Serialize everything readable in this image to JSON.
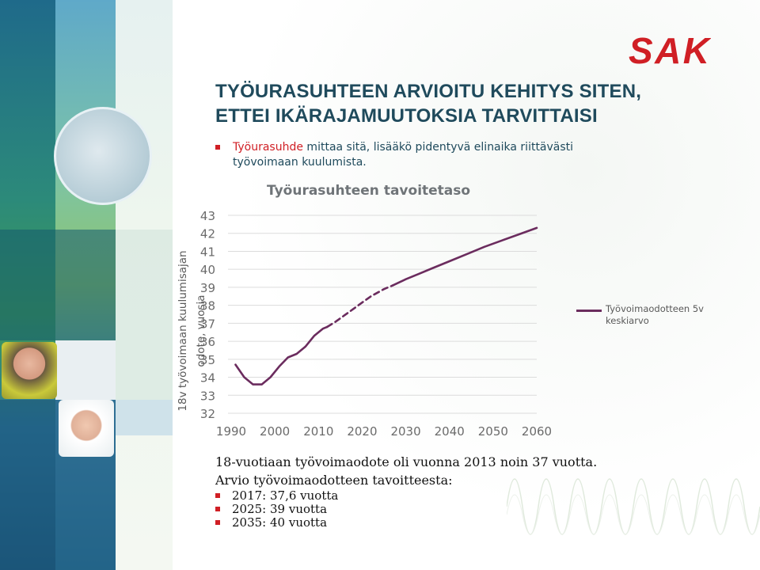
{
  "logo_text": "SAK",
  "title": {
    "line1": "TYÖURASUHTEEN ARVIOITU KEHITYS SITEN,",
    "line2": "ETTEI IKÄRAJAMUUTOKSIA TARVITTAISI"
  },
  "intro": {
    "highlight": "Työurasuhde",
    "line1_rest": " mittaa sitä, lisääkö pidentyvä elinaika riittävästi",
    "line2": "työvoimaan kuulumista."
  },
  "colors": {
    "accent_red": "#d01f25",
    "title_blue": "#1f4a5c",
    "series": "#6b2c5e"
  },
  "chart_data": {
    "type": "line",
    "title": "Työurasuhteen tavoitetaso",
    "ylabel_line1": "18v työvoimaan kuulumisajan",
    "ylabel_line2": "odote, vuosia",
    "xlabel": "",
    "ylim": [
      32,
      43
    ],
    "xlim": [
      1990,
      2060
    ],
    "yticks": [
      "32",
      "33",
      "34",
      "35",
      "36",
      "37",
      "38",
      "39",
      "40",
      "41",
      "42",
      "43"
    ],
    "xticks": [
      "1990",
      "2000",
      "2010",
      "2020",
      "2030",
      "2040",
      "2050",
      "2060"
    ],
    "grid": "horizontal",
    "legend": "right",
    "series": [
      {
        "name": "Työvoimaodotteen 5v keskiarvo",
        "segments": [
          {
            "style": "solid",
            "x": [
              1991,
              1993,
              1995,
              1997,
              1999,
              2001,
              2003,
              2005,
              2007,
              2009,
              2011,
              2012
            ],
            "y": [
              34.7,
              34.0,
              33.6,
              33.6,
              34.0,
              34.6,
              35.1,
              35.3,
              35.7,
              36.3,
              36.7,
              36.8
            ]
          },
          {
            "style": "dashed",
            "x": [
              2012,
              2014,
              2016,
              2018,
              2020,
              2022,
              2025,
              2027
            ],
            "y": [
              36.8,
              37.1,
              37.45,
              37.8,
              38.15,
              38.5,
              38.9,
              39.1
            ]
          },
          {
            "style": "solid",
            "x": [
              2027,
              2030,
              2033,
              2036,
              2040,
              2044,
              2048,
              2052,
              2056,
              2060
            ],
            "y": [
              39.1,
              39.45,
              39.75,
              40.05,
              40.45,
              40.85,
              41.25,
              41.6,
              41.95,
              42.3
            ]
          }
        ]
      }
    ]
  },
  "notes": {
    "line1": "18-vuotiaan työvoimaodote oli vuonna 2013 noin 37 vuotta.",
    "line2": "Arvio työvoimaodotteen tavoitteesta:",
    "bullets": [
      "2017: 37,6 vuotta",
      "2025: 39 vuotta",
      "2035: 40 vuotta"
    ]
  }
}
